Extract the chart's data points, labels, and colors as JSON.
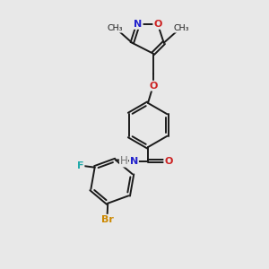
{
  "background_color": "#e8e8e8",
  "bond_color": "#1a1a1a",
  "bond_width": 1.4,
  "atom_colors": {
    "N": "#2222cc",
    "O": "#cc2222",
    "F": "#22aaaa",
    "Br": "#cc8800",
    "H": "#777777",
    "C": "#1a1a1a"
  },
  "font_size": 8.5
}
